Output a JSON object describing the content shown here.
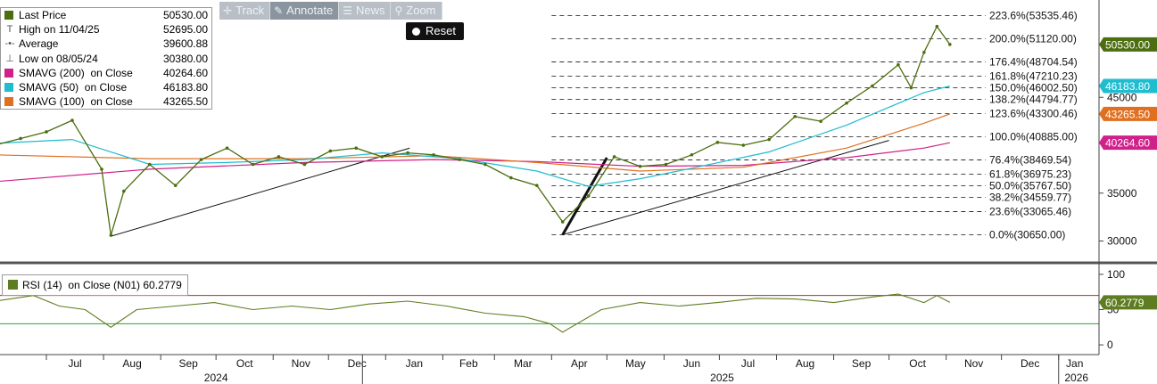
{
  "colors": {
    "price": "#4c6e10",
    "sma200": "#d0208a",
    "sma50": "#20bcd0",
    "sma100": "#e07020",
    "rsi": "#5e7d20",
    "rsi_upper": "#b03030",
    "rsi_lower": "#30a030"
  },
  "legend": [
    {
      "label": "Last Price",
      "value": "50530.00",
      "icon": "square-swatch",
      "color": "#4c6e10"
    },
    {
      "label": "High on 11/04/25",
      "value": "52695.00",
      "icon": "high-marker-icon"
    },
    {
      "label": "Average",
      "value": "39600.88",
      "icon": "average-marker-icon"
    },
    {
      "label": "Low on 08/05/24",
      "value": "30380.00",
      "icon": "low-marker-icon"
    },
    {
      "label": "SMAVG (200)  on Close",
      "value": "40264.60",
      "icon": "square-swatch",
      "color": "#d0208a"
    },
    {
      "label": "SMAVG (50)  on Close",
      "value": "46183.80",
      "icon": "square-swatch",
      "color": "#20bcd0"
    },
    {
      "label": "SMAVG (100)  on Close",
      "value": "43265.50",
      "icon": "square-swatch",
      "color": "#e07020"
    }
  ],
  "toolbar": {
    "track": "Track",
    "annotate": "Annotate",
    "news": "News",
    "zoom": "Zoom",
    "reset": "Reset"
  },
  "rsi_legend": {
    "label": "RSI (14)  on Close (N01) 60.2779"
  },
  "chart_data": [
    {
      "type": "line",
      "panel": "price",
      "x_axis": {
        "months": [
          "Jul",
          "Aug",
          "Sep",
          "Oct",
          "Nov",
          "Dec",
          "Jan",
          "Feb",
          "Mar",
          "Apr",
          "May",
          "Jun",
          "Jul",
          "Aug",
          "Sep",
          "Oct",
          "Nov",
          "Dec",
          "Jan"
        ],
        "years": [
          "2024",
          "2025",
          "2026"
        ],
        "range": [
          "2024-06",
          "2026-01"
        ]
      },
      "y_axis": {
        "ticks": [
          30000,
          35000,
          45000
        ],
        "ylim": [
          28000,
          54700
        ],
        "side": "right"
      },
      "series": [
        {
          "name": "Last Price",
          "color": "#4c6e10",
          "x": [
            "2024-06-03",
            "2024-06-17",
            "2024-07-01",
            "2024-07-15",
            "2024-07-31",
            "2024-08-05",
            "2024-08-12",
            "2024-08-26",
            "2024-09-09",
            "2024-09-23",
            "2024-10-07",
            "2024-10-21",
            "2024-11-04",
            "2024-11-18",
            "2024-12-02",
            "2024-12-16",
            "2024-12-30",
            "2025-01-13",
            "2025-01-27",
            "2025-02-10",
            "2025-02-24",
            "2025-03-10",
            "2025-03-24",
            "2025-04-07",
            "2025-04-21",
            "2025-05-05",
            "2025-05-19",
            "2025-06-02",
            "2025-06-16",
            "2025-06-30",
            "2025-07-14",
            "2025-07-28",
            "2025-08-11",
            "2025-08-25",
            "2025-09-08",
            "2025-09-22",
            "2025-10-06",
            "2025-10-13",
            "2025-10-20",
            "2025-10-27",
            "2025-11-03"
          ],
          "values": [
            40000,
            40700,
            41400,
            42600,
            37500,
            30600,
            35200,
            38000,
            35800,
            38500,
            39700,
            38000,
            38800,
            38000,
            39400,
            39700,
            38800,
            39200,
            39000,
            38500,
            38000,
            36600,
            35800,
            32000,
            34700,
            38800,
            37800,
            38000,
            39000,
            40300,
            40000,
            40600,
            43000,
            42500,
            44400,
            46200,
            48400,
            46000,
            49700,
            52400,
            50530
          ]
        },
        {
          "name": "SMAVG (50)  on Close",
          "color": "#20bcd0",
          "x": [
            "2024-06-03",
            "2024-07-15",
            "2024-08-26",
            "2024-10-07",
            "2024-11-18",
            "2024-12-30",
            "2025-02-10",
            "2025-03-24",
            "2025-04-21",
            "2025-05-19",
            "2025-06-16",
            "2025-07-28",
            "2025-09-08",
            "2025-10-20",
            "2025-11-03"
          ],
          "values": [
            40200,
            40600,
            38000,
            38200,
            38500,
            39200,
            38600,
            37300,
            35700,
            36500,
            37600,
            39300,
            42100,
            45500,
            46183.8
          ]
        },
        {
          "name": "SMAVG (100)  on Close",
          "color": "#e07020",
          "x": [
            "2024-06-03",
            "2024-08-26",
            "2024-11-18",
            "2025-01-27",
            "2025-03-24",
            "2025-05-19",
            "2025-07-14",
            "2025-09-08",
            "2025-10-20",
            "2025-11-03"
          ],
          "values": [
            39000,
            38600,
            38600,
            38900,
            38200,
            37300,
            37700,
            39700,
            42300,
            43265.5
          ]
        },
        {
          "name": "SMAVG (200)  on Close",
          "color": "#d0208a",
          "x": [
            "2024-06-03",
            "2024-08-26",
            "2024-11-18",
            "2025-01-27",
            "2025-03-24",
            "2025-05-19",
            "2025-07-14",
            "2025-09-08",
            "2025-10-20",
            "2025-11-03"
          ],
          "values": [
            36200,
            37500,
            38200,
            38500,
            38300,
            37800,
            37900,
            38700,
            39700,
            40264.6
          ]
        }
      ],
      "fib_levels": [
        {
          "label": "223.6%(53535.46)",
          "value": 53535.46
        },
        {
          "label": "200.0%(51120.00)",
          "value": 51120.0
        },
        {
          "label": "176.4%(48704.54)",
          "value": 48704.54
        },
        {
          "label": "161.8%(47210.23)",
          "value": 47210.23
        },
        {
          "label": "150.0%(46002.50)",
          "value": 46002.5
        },
        {
          "label": "138.2%(44794.77)",
          "value": 44794.77
        },
        {
          "label": "123.6%(43300.46)",
          "value": 43300.46
        },
        {
          "label": "100.0%(40885.00)",
          "value": 40885.0
        },
        {
          "label": "76.4%(38469.54)",
          "value": 38469.54
        },
        {
          "label": "61.8%(36975.23)",
          "value": 36975.23
        },
        {
          "label": "50.0%(35767.50)",
          "value": 35767.5
        },
        {
          "label": "38.2%(34559.77)",
          "value": 34559.77
        },
        {
          "label": "23.6%(33065.46)",
          "value": 33065.46
        },
        {
          "label": "0.0%(30650.00)",
          "value": 30650.0
        }
      ],
      "trendlines": [
        {
          "from": [
            "2024-08-05",
            30500
          ],
          "to": [
            "2025-01-14",
            39700
          ],
          "weight": "thin"
        },
        {
          "from": [
            "2025-04-07",
            30650
          ],
          "to": [
            "2025-10-01",
            40500
          ],
          "weight": "thin"
        },
        {
          "from": [
            "2025-04-07",
            30650
          ],
          "to": [
            "2025-05-01",
            38700
          ],
          "weight": "thick"
        }
      ],
      "value_tags": [
        {
          "label": "50530.00",
          "value": 50530.0,
          "bg": "#4c6e10"
        },
        {
          "label": "46183.80",
          "value": 46183.8,
          "bg": "#20bcd0"
        },
        {
          "label": "43265.50",
          "value": 43265.5,
          "bg": "#e07020"
        },
        {
          "label": "40264.60",
          "value": 40264.6,
          "bg": "#d0208a"
        }
      ]
    },
    {
      "type": "line",
      "panel": "rsi",
      "y_axis": {
        "ticks": [
          0,
          50,
          100
        ],
        "ylim": [
          -10,
          110
        ],
        "side": "right"
      },
      "upper_band": 70,
      "lower_band": 30,
      "series": [
        {
          "name": "RSI (14)  on Close (N01) 60.2779",
          "color": "#5e7d20",
          "x": [
            "2024-06-03",
            "2024-06-24",
            "2024-07-08",
            "2024-07-22",
            "2024-08-05",
            "2024-08-19",
            "2024-09-09",
            "2024-09-30",
            "2024-10-21",
            "2024-11-11",
            "2024-12-02",
            "2024-12-23",
            "2025-01-13",
            "2025-02-03",
            "2025-02-24",
            "2025-03-17",
            "2025-03-31",
            "2025-04-07",
            "2025-04-28",
            "2025-05-19",
            "2025-06-09",
            "2025-06-30",
            "2025-07-21",
            "2025-08-11",
            "2025-09-01",
            "2025-09-22",
            "2025-10-06",
            "2025-10-20",
            "2025-10-27",
            "2025-11-03"
          ],
          "values": [
            62,
            70,
            55,
            50,
            25,
            50,
            55,
            60,
            50,
            55,
            50,
            58,
            62,
            55,
            45,
            40,
            30,
            18,
            50,
            60,
            55,
            60,
            66,
            65,
            60,
            68,
            72,
            60,
            70,
            60.28
          ]
        }
      ],
      "value_tags": [
        {
          "label": "60.2779",
          "value": 60.2779,
          "bg": "#5e7d20"
        }
      ]
    }
  ]
}
